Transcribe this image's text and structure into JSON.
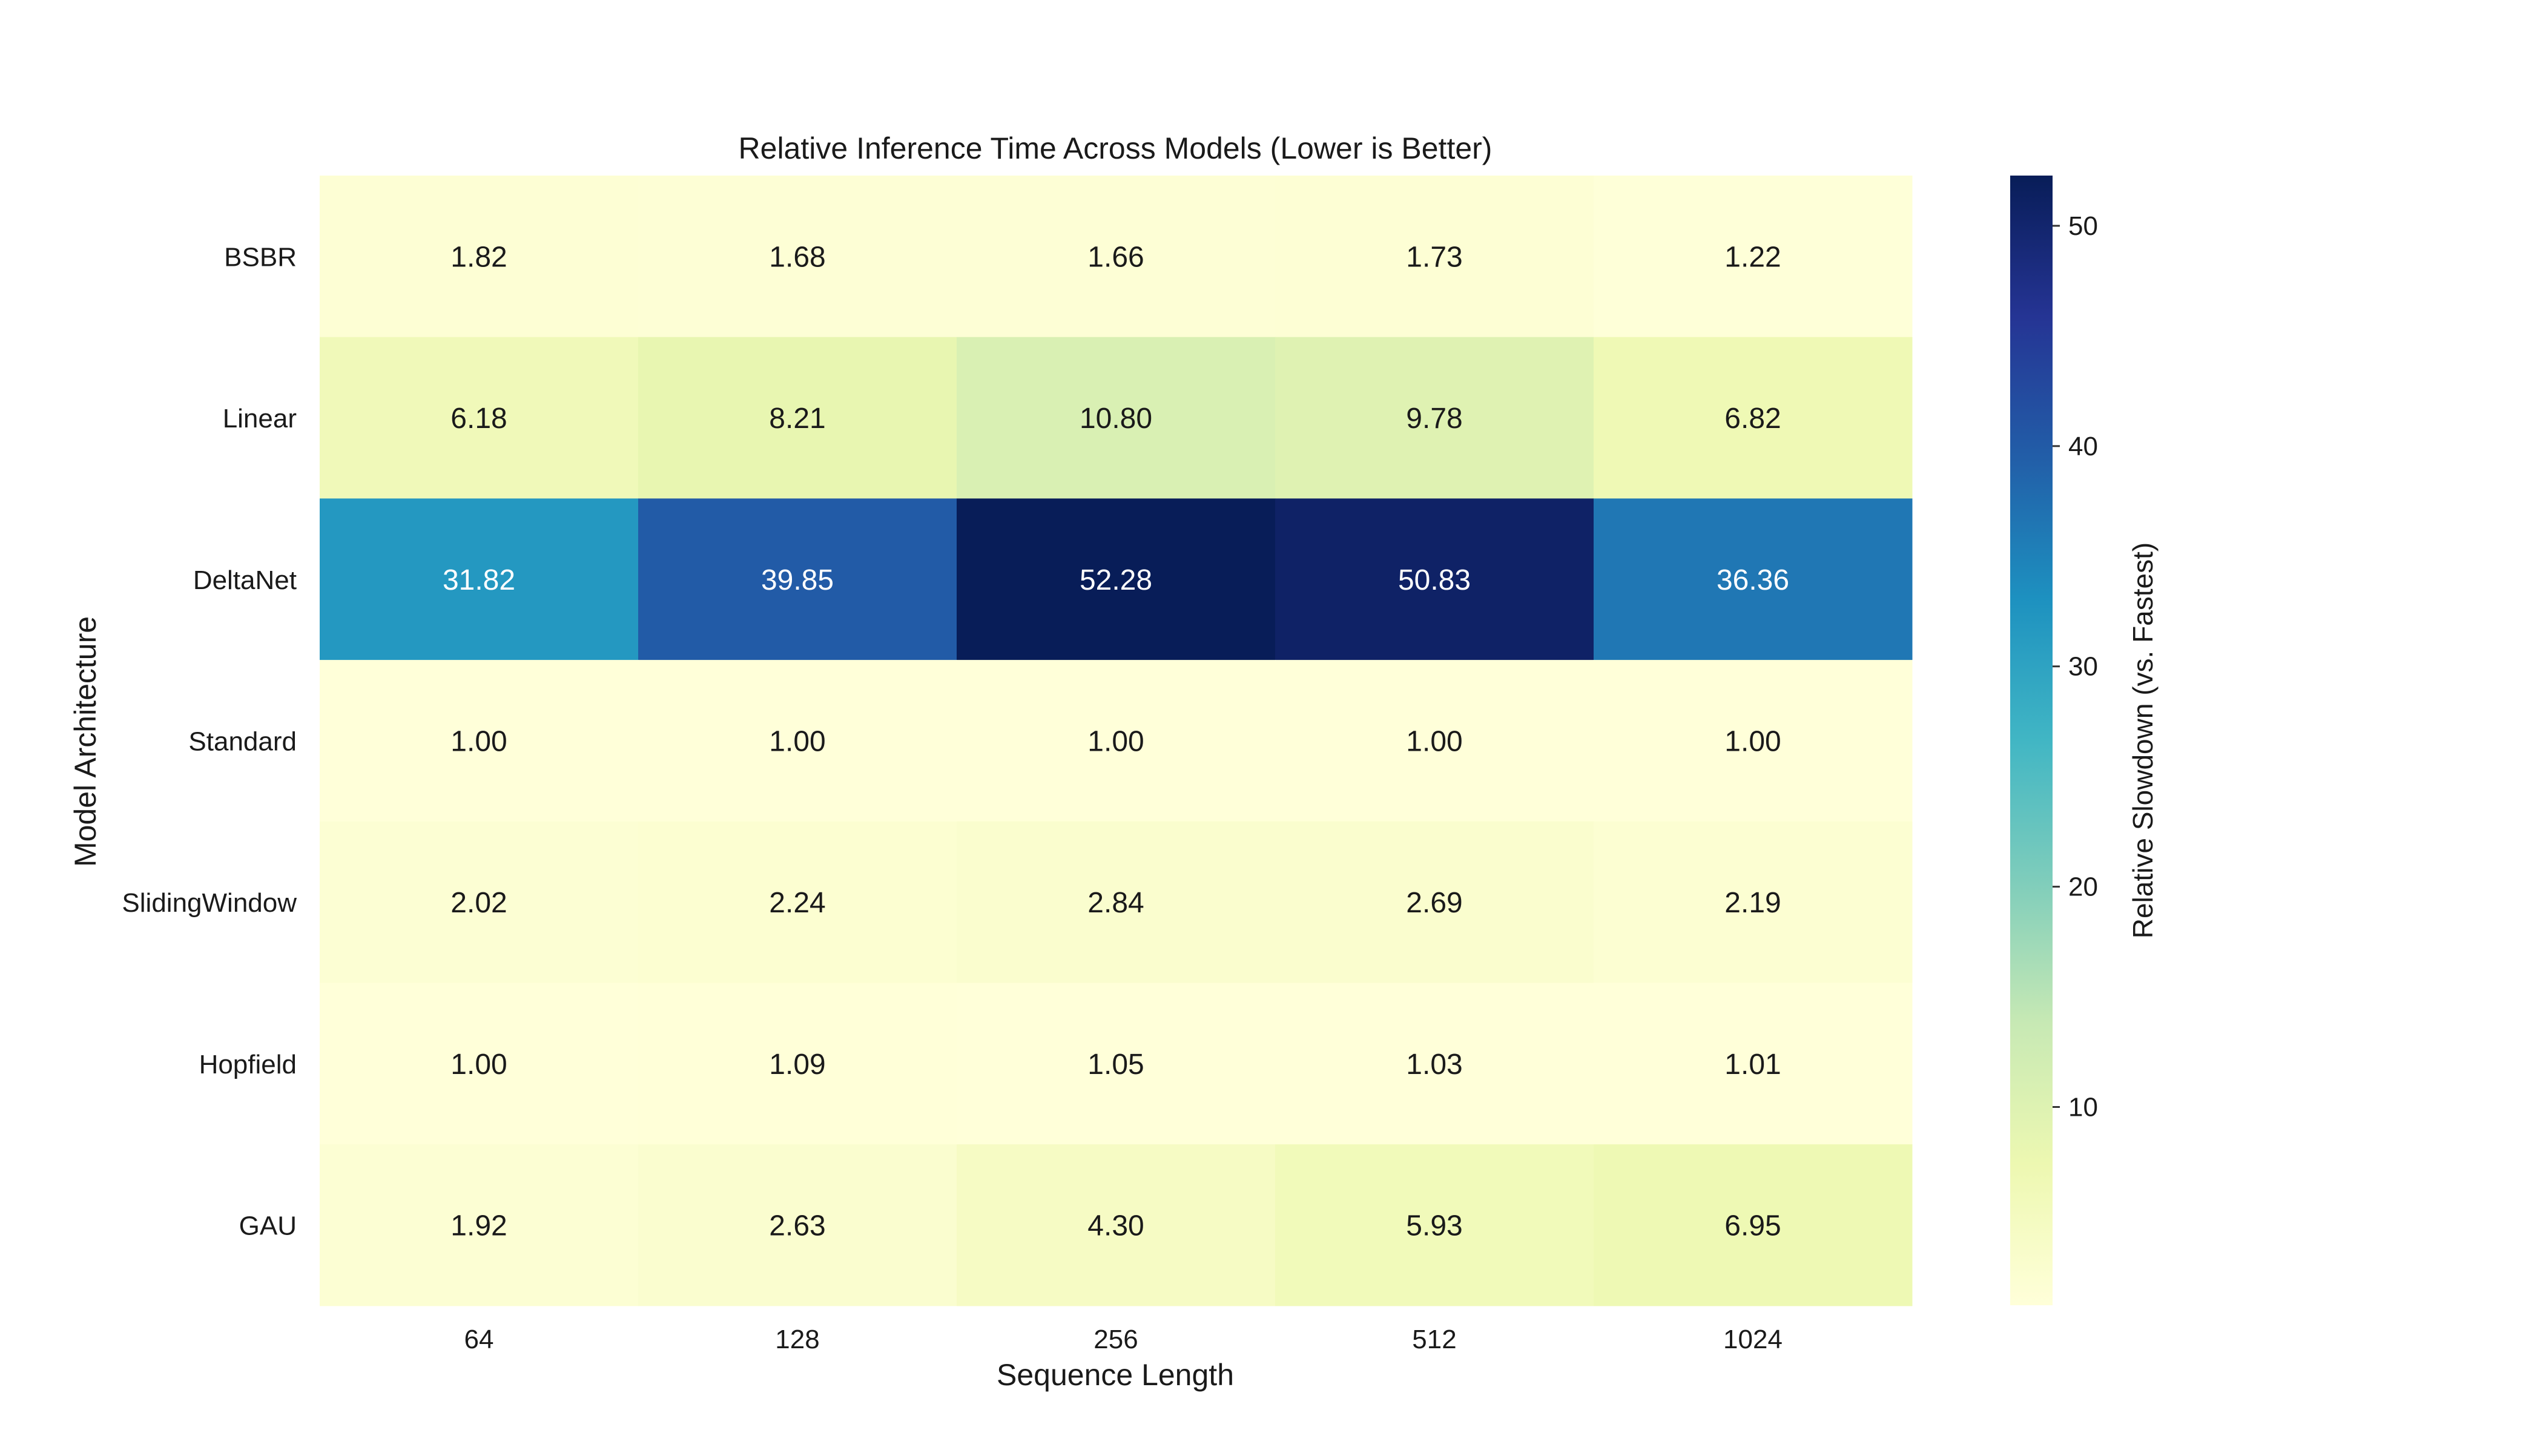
{
  "chart_data": {
    "type": "heatmap",
    "title": "Relative Inference Time Across Models (Lower is Better)",
    "xlabel": "Sequence Length",
    "ylabel": "Model Architecture",
    "x_categories": [
      "64",
      "128",
      "256",
      "512",
      "1024"
    ],
    "y_categories": [
      "BSBR",
      "Linear",
      "DeltaNet",
      "Standard",
      "SlidingWindow",
      "Hopfield",
      "GAU"
    ],
    "values": [
      [
        1.82,
        1.68,
        1.66,
        1.73,
        1.22
      ],
      [
        6.18,
        8.21,
        10.8,
        9.78,
        6.82
      ],
      [
        31.82,
        39.85,
        52.28,
        50.83,
        36.36
      ],
      [
        1.0,
        1.0,
        1.0,
        1.0,
        1.0
      ],
      [
        2.02,
        2.24,
        2.84,
        2.69,
        2.19
      ],
      [
        1.0,
        1.09,
        1.05,
        1.03,
        1.01
      ],
      [
        1.92,
        2.63,
        4.3,
        5.93,
        6.95
      ]
    ],
    "value_format": "2 decimals",
    "colormap": "YlGnBu",
    "colormap_stops": [
      "#ffffd9",
      "#edf8b1",
      "#c7e9b4",
      "#7fcdbb",
      "#41b6c4",
      "#1d91c0",
      "#225ea8",
      "#253494",
      "#081d58"
    ],
    "vmin": 1.0,
    "vmax": 52.28,
    "colorbar": {
      "label": "Relative Slowdown (vs. Fastest)",
      "ticks": [
        10,
        20,
        30,
        40,
        50
      ]
    },
    "grid": false,
    "legend": "colorbar-right"
  }
}
